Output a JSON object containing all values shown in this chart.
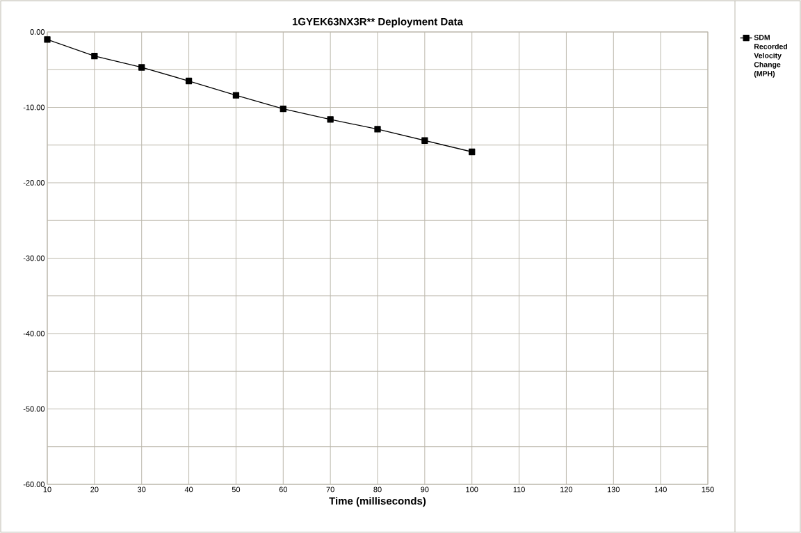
{
  "chart_data": {
    "type": "line",
    "title": "1GYEK63NX3R******  Deployment Data",
    "xlabel": "Time (milliseconds)",
    "x": [
      10,
      20,
      30,
      40,
      50,
      60,
      70,
      80,
      90,
      100
    ],
    "series": [
      {
        "name": "SDM Recorded Velocity Change (MPH)",
        "color": "#000000",
        "values": [
          -1.0,
          -3.2,
          -4.7,
          -6.5,
          -8.4,
          -10.2,
          -11.6,
          -12.9,
          -14.4,
          -15.9
        ]
      }
    ],
    "xlim": [
      10,
      150
    ],
    "xticks": [
      10,
      20,
      30,
      40,
      50,
      60,
      70,
      80,
      90,
      100,
      110,
      120,
      130,
      140,
      150
    ],
    "ylim": [
      -60,
      0
    ],
    "yticks": [
      {
        "value": -60,
        "label": "-60.00"
      },
      {
        "value": -55,
        "label": null
      },
      {
        "value": -50,
        "label": "-50.00"
      },
      {
        "value": -45,
        "label": null
      },
      {
        "value": -40,
        "label": "-40.00"
      },
      {
        "value": -35,
        "label": null
      },
      {
        "value": -30,
        "label": "-30.00"
      },
      {
        "value": -25,
        "label": null
      },
      {
        "value": -20,
        "label": "-20.00"
      },
      {
        "value": -15,
        "label": null
      },
      {
        "value": -10,
        "label": "-10.00"
      },
      {
        "value": -5,
        "label": null
      },
      {
        "value": 0,
        "label": "0.00"
      }
    ],
    "grid": true,
    "legend": "right",
    "marker": "square",
    "line_style": "solid"
  }
}
